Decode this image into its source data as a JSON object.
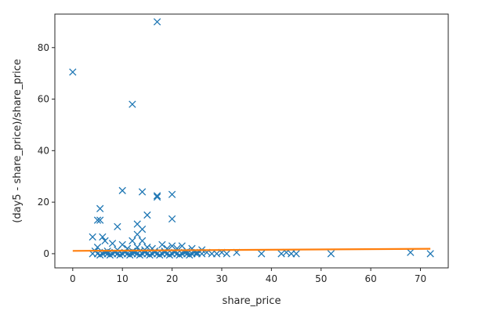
{
  "chart_data": {
    "type": "scatter",
    "xlabel": "share_price",
    "ylabel": "(day5 - share_price)/share_price",
    "xlim": [
      -3.6,
      75.6
    ],
    "ylim": [
      -5.5,
      93
    ],
    "xticks": [
      0,
      10,
      20,
      30,
      40,
      50,
      60,
      70
    ],
    "yticks": [
      0,
      20,
      40,
      60,
      80
    ],
    "grid": false,
    "colors": {
      "scatter": "#1f77b4",
      "fit_line": "#ff7f0e",
      "axes": "#262626"
    },
    "series": [
      {
        "kind": "scatter",
        "marker": "x",
        "points": [
          [
            0,
            70.5
          ],
          [
            17,
            90
          ],
          [
            12,
            58
          ],
          [
            10,
            24.5
          ],
          [
            14,
            24
          ],
          [
            20,
            23
          ],
          [
            17,
            22.5
          ],
          [
            17,
            22
          ],
          [
            5.5,
            17.5
          ],
          [
            15,
            15
          ],
          [
            20,
            13.5
          ],
          [
            5,
            13
          ],
          [
            5.5,
            13
          ],
          [
            13,
            11.5
          ],
          [
            9,
            10.5
          ],
          [
            14,
            9.5
          ],
          [
            13,
            7.5
          ],
          [
            4,
            6.5
          ],
          [
            6,
            6.5
          ],
          [
            6.5,
            5
          ],
          [
            12,
            5
          ],
          [
            14,
            5
          ],
          [
            8,
            4
          ],
          [
            10,
            3.5
          ],
          [
            18,
            3.5
          ],
          [
            20,
            3
          ],
          [
            22,
            3
          ],
          [
            5,
            2.5
          ],
          [
            11,
            2
          ],
          [
            13,
            2.5
          ],
          [
            15,
            2.5
          ],
          [
            16,
            2
          ],
          [
            19,
            2
          ],
          [
            21,
            2
          ],
          [
            24,
            2
          ],
          [
            26,
            1.5
          ],
          [
            4.5,
            1
          ],
          [
            7,
            1
          ],
          [
            9,
            1.5
          ],
          [
            12,
            1
          ],
          [
            13.5,
            1
          ],
          [
            14.5,
            1.5
          ],
          [
            16.5,
            1
          ],
          [
            18.5,
            1
          ],
          [
            23,
            1
          ],
          [
            25,
            0.5
          ],
          [
            27,
            0.5
          ],
          [
            4,
            0
          ],
          [
            5,
            0
          ],
          [
            6,
            0
          ],
          [
            7,
            0
          ],
          [
            8,
            0
          ],
          [
            9,
            0
          ],
          [
            10,
            0
          ],
          [
            11,
            0
          ],
          [
            12,
            0
          ],
          [
            13,
            0
          ],
          [
            14,
            0
          ],
          [
            15,
            0
          ],
          [
            16,
            0
          ],
          [
            17,
            0
          ],
          [
            18,
            0
          ],
          [
            19,
            0
          ],
          [
            20,
            0
          ],
          [
            21,
            0
          ],
          [
            22,
            0
          ],
          [
            23,
            0
          ],
          [
            24,
            0
          ],
          [
            25,
            0
          ],
          [
            26,
            0
          ],
          [
            5.5,
            -0.5
          ],
          [
            6.5,
            0.5
          ],
          [
            7.5,
            -0.5
          ],
          [
            8.5,
            0.5
          ],
          [
            9.5,
            -0.5
          ],
          [
            10.5,
            0.5
          ],
          [
            11.5,
            -0.5
          ],
          [
            12.5,
            0.5
          ],
          [
            13.5,
            -0.5
          ],
          [
            14.5,
            0.5
          ],
          [
            15.5,
            -0.5
          ],
          [
            16.5,
            0.5
          ],
          [
            17.5,
            -0.5
          ],
          [
            18.5,
            0.5
          ],
          [
            19.5,
            -0.5
          ],
          [
            20.5,
            0.5
          ],
          [
            21.5,
            -0.5
          ],
          [
            22.5,
            0.5
          ],
          [
            23.5,
            -0.5
          ],
          [
            24.5,
            0.5
          ],
          [
            28,
            0
          ],
          [
            29,
            0
          ],
          [
            30,
            0.5
          ],
          [
            31,
            0
          ],
          [
            33,
            0.5
          ],
          [
            38,
            0
          ],
          [
            42,
            0
          ],
          [
            43,
            0.5
          ],
          [
            44,
            0
          ],
          [
            45,
            0
          ],
          [
            52,
            0
          ],
          [
            68,
            0.5
          ],
          [
            72,
            0
          ]
        ]
      },
      {
        "kind": "line",
        "x": [
          0,
          72
        ],
        "y": [
          1.1,
          1.9
        ]
      }
    ]
  }
}
